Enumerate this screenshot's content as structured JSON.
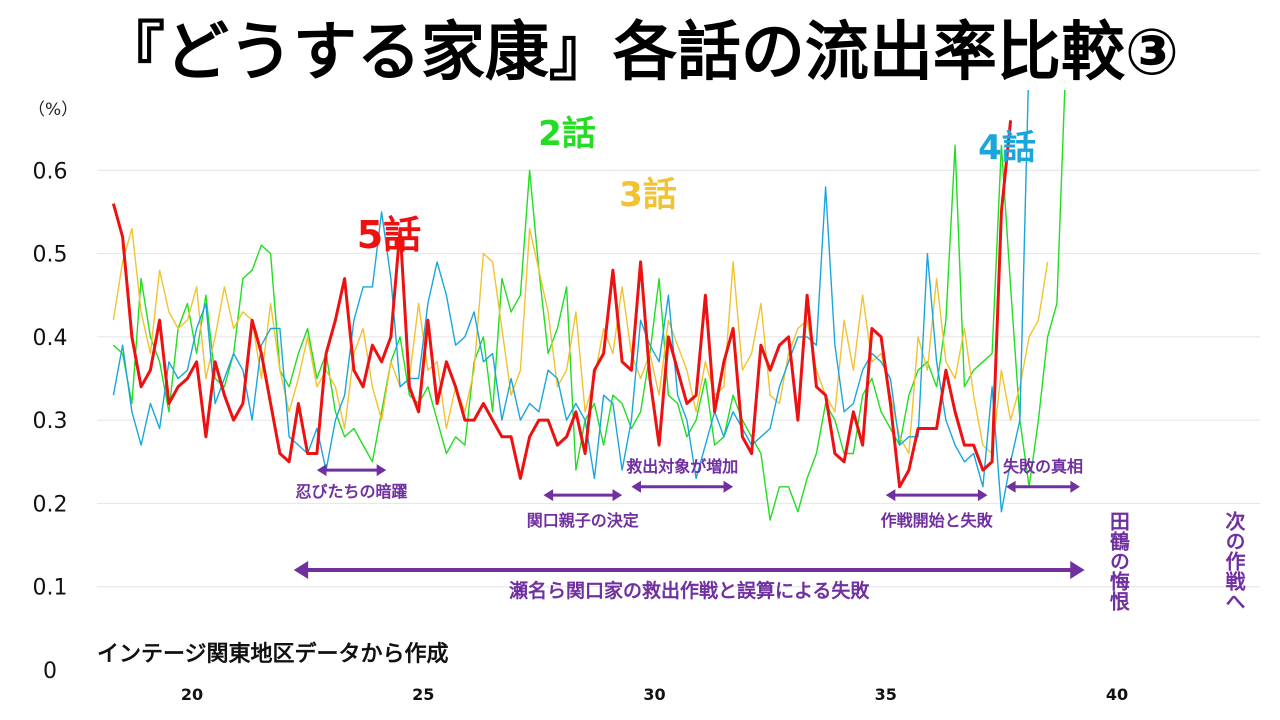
{
  "chart_data": {
    "type": "line",
    "title": "『どうする家康』各話の流出率比較③",
    "unit_label": "（%）",
    "source": "インテージ関東地区データから作成",
    "ylim": [
      0,
      0.7
    ],
    "xlim": [
      18.2,
      43.05
    ],
    "y_ticks": [
      "0",
      "0.1",
      "0.2",
      "0.3",
      "0.4",
      "0.5",
      "0.6"
    ],
    "y_tick_values": [
      0,
      0.1,
      0.2,
      0.3,
      0.4,
      0.5,
      0.6
    ],
    "x_ticks": [
      "20",
      "25",
      "30",
      "35",
      "40"
    ],
    "x_tick_values": [
      20,
      25,
      30,
      35,
      40
    ],
    "grid": "horizontal",
    "x_start": 18.3,
    "x_step": 0.2,
    "series": [
      {
        "name": "2話",
        "color": "#22dd22",
        "values": [
          0.39,
          0.38,
          0.32,
          0.47,
          0.4,
          0.37,
          0.31,
          0.41,
          0.44,
          0.38,
          0.45,
          0.35,
          0.34,
          0.38,
          0.47,
          0.48,
          0.51,
          0.5,
          0.36,
          0.34,
          0.38,
          0.41,
          0.35,
          0.38,
          0.31,
          0.28,
          0.29,
          0.27,
          0.25,
          0.31,
          0.37,
          0.4,
          0.33,
          0.32,
          0.34,
          0.3,
          0.26,
          0.28,
          0.27,
          0.37,
          0.4,
          0.31,
          0.47,
          0.43,
          0.45,
          0.6,
          0.48,
          0.38,
          0.41,
          0.46,
          0.24,
          0.3,
          0.32,
          0.27,
          0.33,
          0.32,
          0.29,
          0.31,
          0.38,
          0.47,
          0.33,
          0.32,
          0.28,
          0.3,
          0.35,
          0.27,
          0.28,
          0.33,
          0.3,
          0.28,
          0.26,
          0.18,
          0.22,
          0.22,
          0.19,
          0.23,
          0.26,
          0.32,
          0.3,
          0.26,
          0.26,
          0.33,
          0.35,
          0.31,
          0.29,
          0.27,
          0.33,
          0.36,
          0.37,
          0.34,
          0.42,
          0.63,
          0.34,
          0.36,
          0.37,
          0.38,
          0.63,
          0.46,
          0.3,
          0.22,
          0.3,
          0.4,
          0.44,
          0.74
        ]
      },
      {
        "name": "3話",
        "color": "#f2c230",
        "values": [
          0.42,
          0.49,
          0.53,
          0.43,
          0.38,
          0.48,
          0.43,
          0.41,
          0.42,
          0.46,
          0.35,
          0.4,
          0.46,
          0.41,
          0.43,
          0.42,
          0.35,
          0.44,
          0.36,
          0.31,
          0.35,
          0.4,
          0.34,
          0.36,
          0.34,
          0.29,
          0.38,
          0.41,
          0.34,
          0.3,
          0.37,
          0.34,
          0.35,
          0.44,
          0.36,
          0.37,
          0.29,
          0.34,
          0.31,
          0.36,
          0.5,
          0.49,
          0.41,
          0.33,
          0.36,
          0.53,
          0.48,
          0.43,
          0.34,
          0.36,
          0.43,
          0.31,
          0.35,
          0.41,
          0.38,
          0.46,
          0.38,
          0.35,
          0.38,
          0.33,
          0.42,
          0.39,
          0.36,
          0.31,
          0.37,
          0.33,
          0.34,
          0.49,
          0.36,
          0.38,
          0.44,
          0.33,
          0.32,
          0.38,
          0.41,
          0.42,
          0.36,
          0.33,
          0.31,
          0.42,
          0.36,
          0.45,
          0.37,
          0.38,
          0.33,
          0.28,
          0.26,
          0.4,
          0.36,
          0.47,
          0.37,
          0.35,
          0.41,
          0.33,
          0.27,
          0.26,
          0.36,
          0.3,
          0.34,
          0.4,
          0.42,
          0.49
        ]
      },
      {
        "name": "4話",
        "color": "#1aa6dc",
        "values": [
          0.33,
          0.39,
          0.31,
          0.27,
          0.32,
          0.29,
          0.37,
          0.35,
          0.36,
          0.41,
          0.44,
          0.32,
          0.35,
          0.38,
          0.36,
          0.3,
          0.39,
          0.41,
          0.41,
          0.28,
          0.27,
          0.26,
          0.29,
          0.24,
          0.3,
          0.33,
          0.42,
          0.46,
          0.46,
          0.55,
          0.47,
          0.34,
          0.35,
          0.35,
          0.44,
          0.49,
          0.45,
          0.39,
          0.4,
          0.43,
          0.37,
          0.38,
          0.3,
          0.35,
          0.3,
          0.32,
          0.31,
          0.36,
          0.35,
          0.3,
          0.32,
          0.3,
          0.23,
          0.33,
          0.32,
          0.24,
          0.3,
          0.42,
          0.39,
          0.37,
          0.45,
          0.33,
          0.3,
          0.23,
          0.27,
          0.31,
          0.28,
          0.31,
          0.29,
          0.27,
          0.28,
          0.29,
          0.34,
          0.37,
          0.4,
          0.4,
          0.39,
          0.58,
          0.39,
          0.31,
          0.32,
          0.36,
          0.38,
          0.37,
          0.35,
          0.27,
          0.28,
          0.28,
          0.5,
          0.37,
          0.3,
          0.27,
          0.25,
          0.26,
          0.22,
          0.34,
          0.19,
          0.25,
          0.3,
          0.74
        ]
      },
      {
        "name": "5話",
        "color": "#ee1111",
        "values": [
          0.56,
          0.52,
          0.4,
          0.34,
          0.36,
          0.42,
          0.32,
          0.34,
          0.35,
          0.37,
          0.28,
          0.37,
          0.33,
          0.3,
          0.32,
          0.42,
          0.38,
          0.32,
          0.26,
          0.25,
          0.32,
          0.26,
          0.26,
          0.38,
          0.42,
          0.47,
          0.36,
          0.34,
          0.39,
          0.37,
          0.4,
          0.53,
          0.34,
          0.31,
          0.42,
          0.32,
          0.37,
          0.34,
          0.3,
          0.3,
          0.32,
          0.3,
          0.28,
          0.28,
          0.23,
          0.28,
          0.3,
          0.3,
          0.27,
          0.28,
          0.31,
          0.26,
          0.36,
          0.38,
          0.48,
          0.37,
          0.36,
          0.49,
          0.35,
          0.27,
          0.4,
          0.36,
          0.32,
          0.33,
          0.45,
          0.31,
          0.37,
          0.41,
          0.28,
          0.26,
          0.39,
          0.36,
          0.39,
          0.4,
          0.3,
          0.45,
          0.34,
          0.33,
          0.26,
          0.25,
          0.31,
          0.27,
          0.41,
          0.4,
          0.32,
          0.22,
          0.24,
          0.29,
          0.29,
          0.29,
          0.36,
          0.31,
          0.27,
          0.27,
          0.24,
          0.25,
          0.55,
          0.66
        ]
      }
    ],
    "legend_labels": [
      {
        "series": "2話",
        "text": "2話",
        "color": "#22dd22"
      },
      {
        "series": "3話",
        "text": "3話",
        "color": "#f2c230"
      },
      {
        "series": "4話",
        "text": "4話",
        "color": "#1aa6dc"
      },
      {
        "series": "5話",
        "text": "5話",
        "color": "#ee1111"
      }
    ],
    "annotations": [
      {
        "text": "忍びたちの暗躍",
        "from": 22.7,
        "to": 24.2,
        "y": 0.24,
        "label_y": 0.215
      },
      {
        "text": "関口親子の決定",
        "from": 27.6,
        "to": 29.3,
        "y": 0.21,
        "label_y": 0.18
      },
      {
        "text": "救出対象が増加",
        "from": 29.5,
        "to": 31.7,
        "y": 0.22,
        "label_y": 0.245
      },
      {
        "text": "作戦開始と失敗",
        "from": 35.0,
        "to": 37.2,
        "y": 0.21,
        "label_y": 0.18
      },
      {
        "text": "失敗の真相",
        "from": 37.6,
        "to": 39.2,
        "y": 0.22,
        "label_y": 0.245
      },
      {
        "text": "瀬名ら関口家の救出作戦と誤算による失敗",
        "from": 22.2,
        "to": 39.3,
        "y": 0.12,
        "label_y": 0.095
      },
      {
        "text": "田鶴の悔恨",
        "x": 39.9,
        "y": 0.215,
        "vertical": true
      },
      {
        "text": "次の作戦へ",
        "x": 42.4,
        "y": 0.215,
        "vertical": true
      }
    ],
    "annotation_color": "#7030a0"
  }
}
